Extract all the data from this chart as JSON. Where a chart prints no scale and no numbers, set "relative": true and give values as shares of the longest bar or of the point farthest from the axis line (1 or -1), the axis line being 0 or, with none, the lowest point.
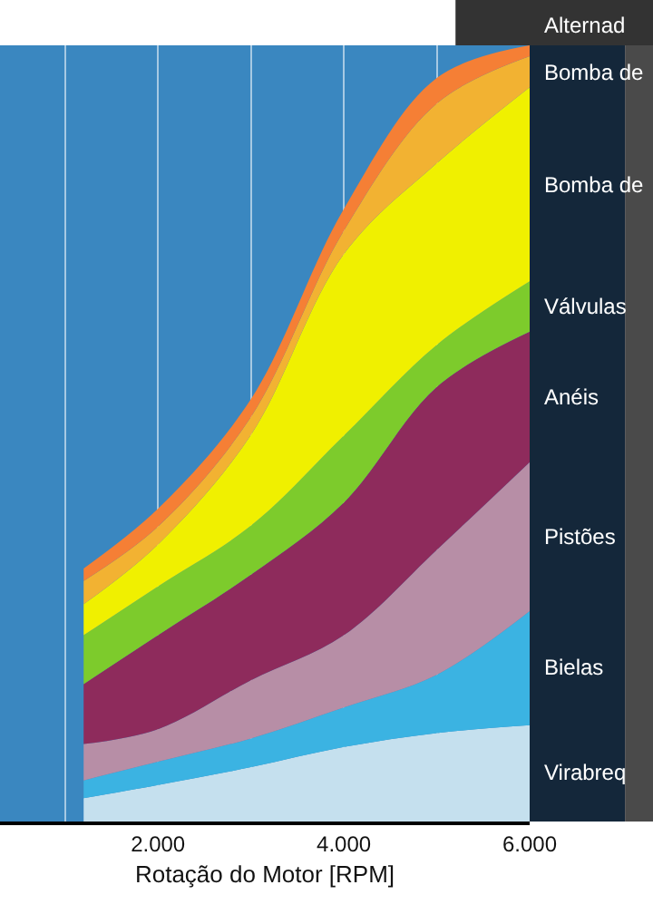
{
  "chart_data": {
    "type": "area",
    "stacked": true,
    "relative": true,
    "xlabel": "Rotação do Motor [RPM]",
    "x": [
      1200,
      2000,
      3000,
      4000,
      5000,
      6000
    ],
    "xlim": [
      300,
      6000
    ],
    "xticks": [
      {
        "value": 1000,
        "label": null
      },
      {
        "value": 2000,
        "label": "2.000"
      },
      {
        "value": 3000,
        "label": null
      },
      {
        "value": 4000,
        "label": "4.000"
      },
      {
        "value": 5000,
        "label": null
      },
      {
        "value": 6000,
        "label": "6.000"
      }
    ],
    "grid": "x",
    "legend": false,
    "series": [
      {
        "name": "Virabreq",
        "color": "#c5e0ee",
        "values": [
          0.03,
          0.047,
          0.07,
          0.096,
          0.114,
          0.124
        ]
      },
      {
        "name": "Bielas",
        "color": "#3bb3e2",
        "values": [
          0.023,
          0.03,
          0.037,
          0.051,
          0.075,
          0.147
        ]
      },
      {
        "name": "Pistões",
        "color": "#b78ea6",
        "values": [
          0.047,
          0.042,
          0.075,
          0.093,
          0.161,
          0.192
        ]
      },
      {
        "name": "Anéis",
        "color": "#8e2b5c",
        "values": [
          0.077,
          0.121,
          0.136,
          0.171,
          0.21,
          0.168
        ]
      },
      {
        "name": "Válvulas",
        "color": "#7dcb2c",
        "values": [
          0.063,
          0.063,
          0.063,
          0.086,
          0.054,
          0.065
        ]
      },
      {
        "name": "Bomba de",
        "color": "#f0f000",
        "values": [
          0.04,
          0.054,
          0.117,
          0.234,
          0.234,
          0.25
        ]
      },
      {
        "name": "Bomba de",
        "color": "#f2b232",
        "values": [
          0.03,
          0.023,
          0.023,
          0.03,
          0.077,
          0.04
        ]
      },
      {
        "name": "Alternad",
        "color": "#f57f35",
        "values": [
          0.016,
          0.023,
          0.023,
          0.028,
          0.033,
          0.014
        ]
      }
    ]
  }
}
